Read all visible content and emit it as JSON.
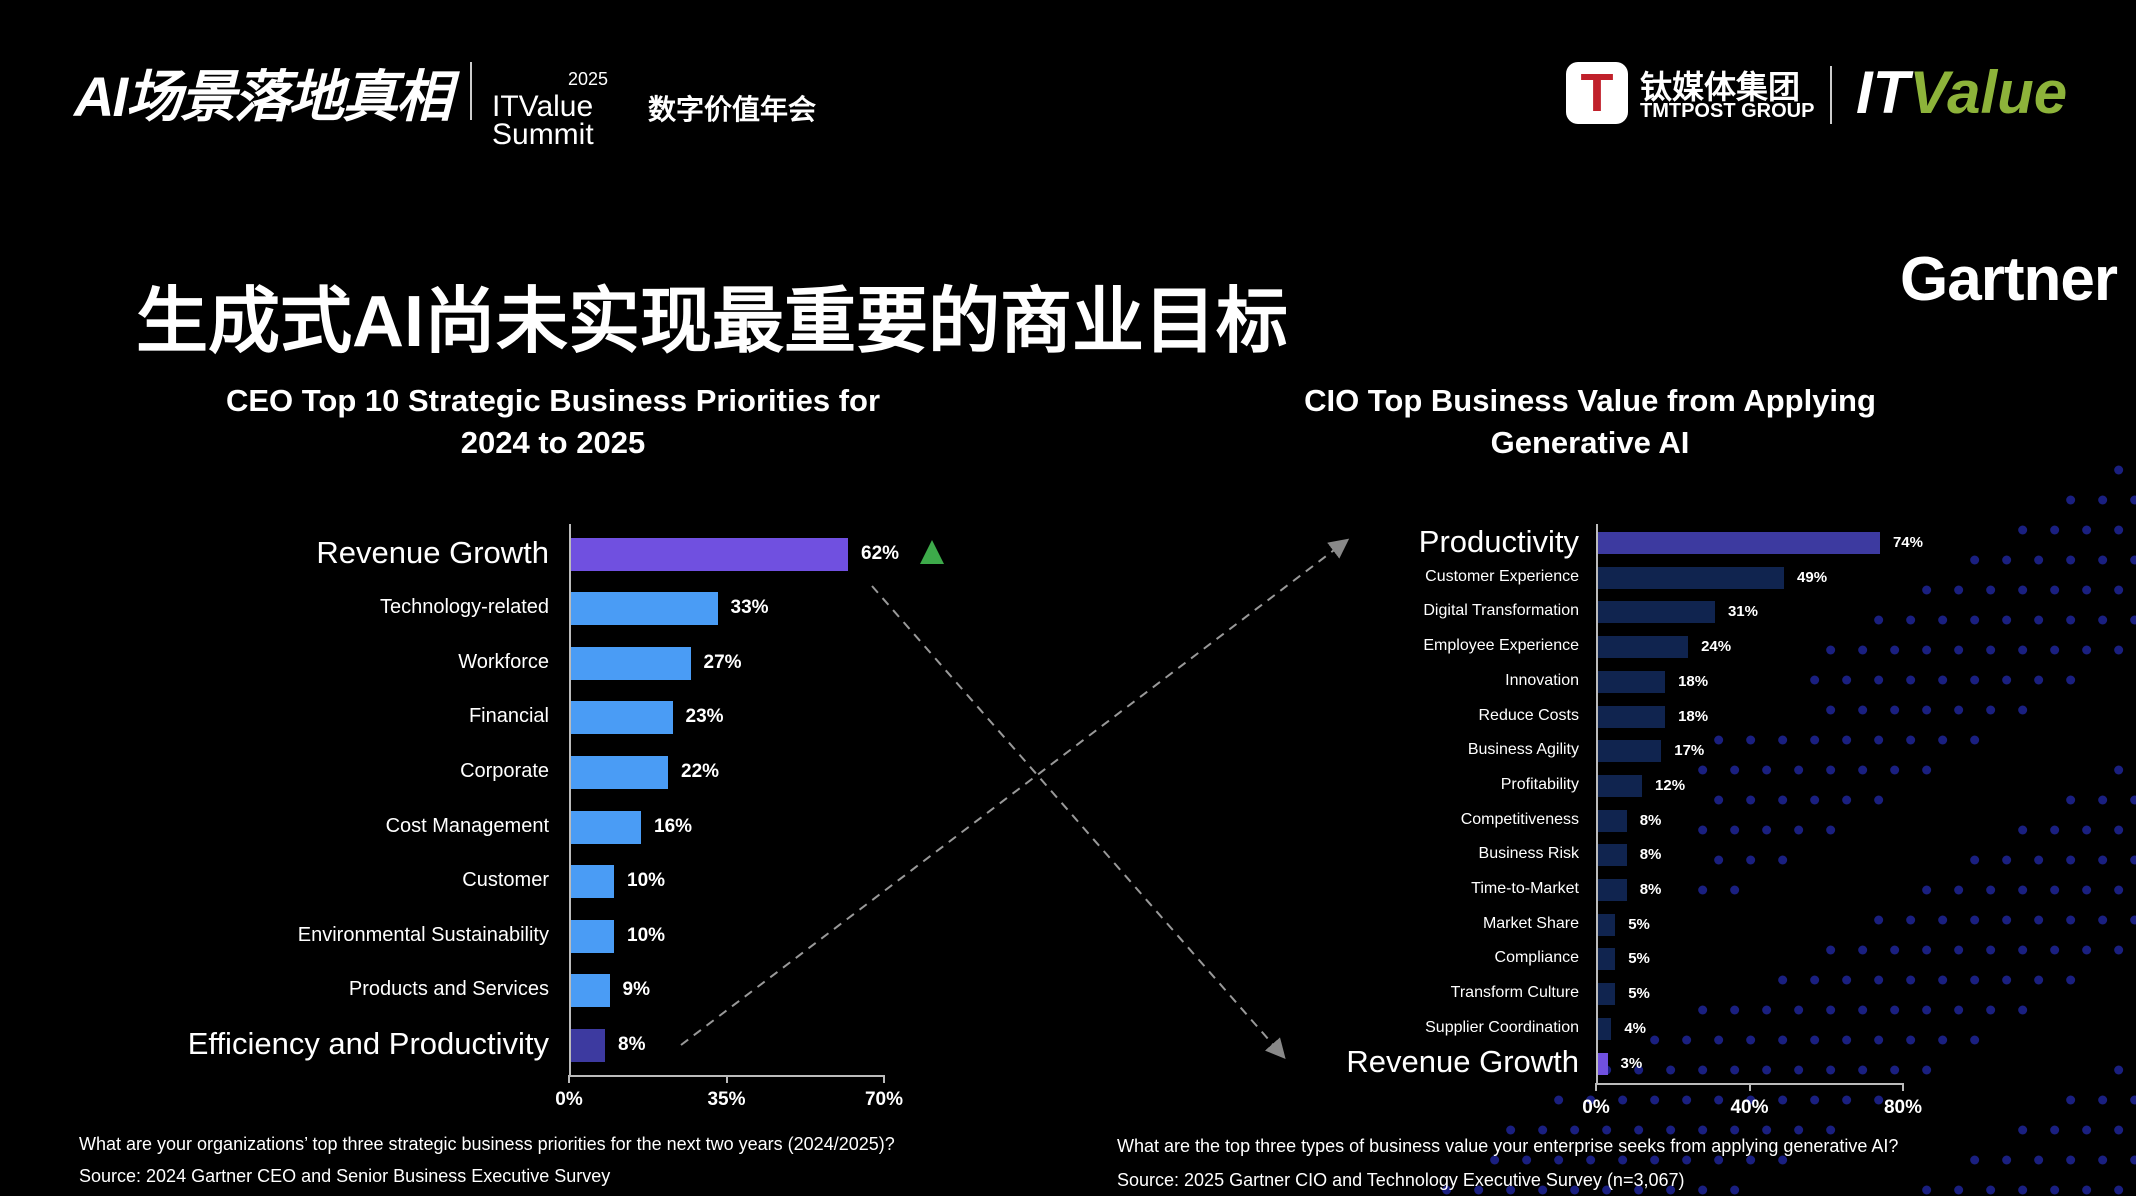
{
  "header": {
    "event_logo": "AI场景落地真相",
    "summit_year": "2025",
    "summit_name_1": "ITValue",
    "summit_name_2": "Summit",
    "summit_cn": "数字价值年会",
    "tmt_icon": "T",
    "tmt_cn": "钛媒体集团",
    "tmt_en": "TMTPOST GROUP",
    "itvalue_it": "IT",
    "itvalue_value": "Value",
    "gartner": "Gartner"
  },
  "title": "生成式AI尚未实现最重要的商业目标",
  "colors": {
    "highlight": "#7050e0",
    "left_bar": "#4a9cf5",
    "right_bar": "#10244f",
    "right_top": "#3d3aa0",
    "triangle": "#3daa4a"
  },
  "chart_data": [
    {
      "type": "bar",
      "orientation": "horizontal",
      "title": "CEO Top 10 Strategic Business Priorities for 2024 to 2025",
      "title_lines": [
        "CEO Top 10 Strategic Business Priorities for",
        "2024 to 2025"
      ],
      "categories": [
        "Revenue Growth",
        "Technology-related",
        "Workforce",
        "Financial",
        "Corporate",
        "Cost Management",
        "Customer",
        "Environmental Sustainability",
        "Products and Services",
        "Efficiency and Productivity"
      ],
      "values": [
        62,
        33,
        27,
        23,
        22,
        16,
        10,
        10,
        9,
        8
      ],
      "labels": [
        "62%",
        "33%",
        "27%",
        "23%",
        "22%",
        "16%",
        "10%",
        "10%",
        "9%",
        "8%"
      ],
      "xlim": [
        0,
        70
      ],
      "ticks": [
        "0%",
        "35%",
        "70%"
      ],
      "question": "What are your organizations’ top three strategic business priorities for the next two years (2024/2025)?",
      "source": "Source: 2024 Gartner CEO and Senior Business Executive Survey"
    },
    {
      "type": "bar",
      "orientation": "horizontal",
      "title": "CIO Top Business Value from Applying Generative AI",
      "title_lines": [
        "CIO Top Business Value from Applying",
        "Generative AI"
      ],
      "categories": [
        "Productivity",
        "Customer Experience",
        "Digital Transformation",
        "Employee Experience",
        "Innovation",
        "Reduce Costs",
        "Business Agility",
        "Profitability",
        "Competitiveness",
        "Business Risk",
        "Time-to-Market",
        "Market Share",
        "Compliance",
        "Transform Culture",
        "Supplier Coordination",
        "Revenue Growth"
      ],
      "values": [
        74,
        49,
        31,
        24,
        18,
        18,
        17,
        12,
        8,
        8,
        8,
        5,
        5,
        5,
        4,
        3
      ],
      "labels": [
        "74%",
        "49%",
        "31%",
        "24%",
        "18%",
        "18%",
        "17%",
        "12%",
        "8%",
        "8%",
        "8%",
        "5%",
        "5%",
        "5%",
        "4%",
        "3%"
      ],
      "xlim": [
        0,
        80
      ],
      "ticks": [
        "0%",
        "40%",
        "80%"
      ],
      "question": "What are the top three types of business value your enterprise seeks from applying generative AI?",
      "source": "Source: 2025 Gartner CIO and Technology Executive Survey (n=3,067)"
    }
  ]
}
